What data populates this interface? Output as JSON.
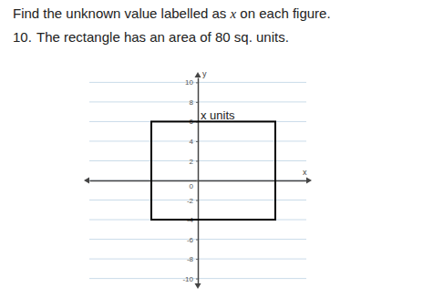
{
  "instruction": [
    "Find the unknown value labelled as ",
    "x",
    " on each figure."
  ],
  "problem": {
    "number": "10.",
    "text": "The rectangle has an area of 80 sq. units."
  },
  "chart_data": {
    "type": "rectangle",
    "x": [
      -3,
      5
    ],
    "y": [
      -4,
      6
    ],
    "annotation": "x units",
    "x_label": "x",
    "y_label": "y",
    "xlim": [
      -7,
      7
    ],
    "ylim": [
      -10.5,
      10.5
    ],
    "yticks": [
      -10,
      -8,
      -6,
      -4,
      -2,
      0,
      2,
      4,
      6,
      8,
      10
    ],
    "grid": true,
    "tick_labels": "y",
    "color": "#000000"
  }
}
